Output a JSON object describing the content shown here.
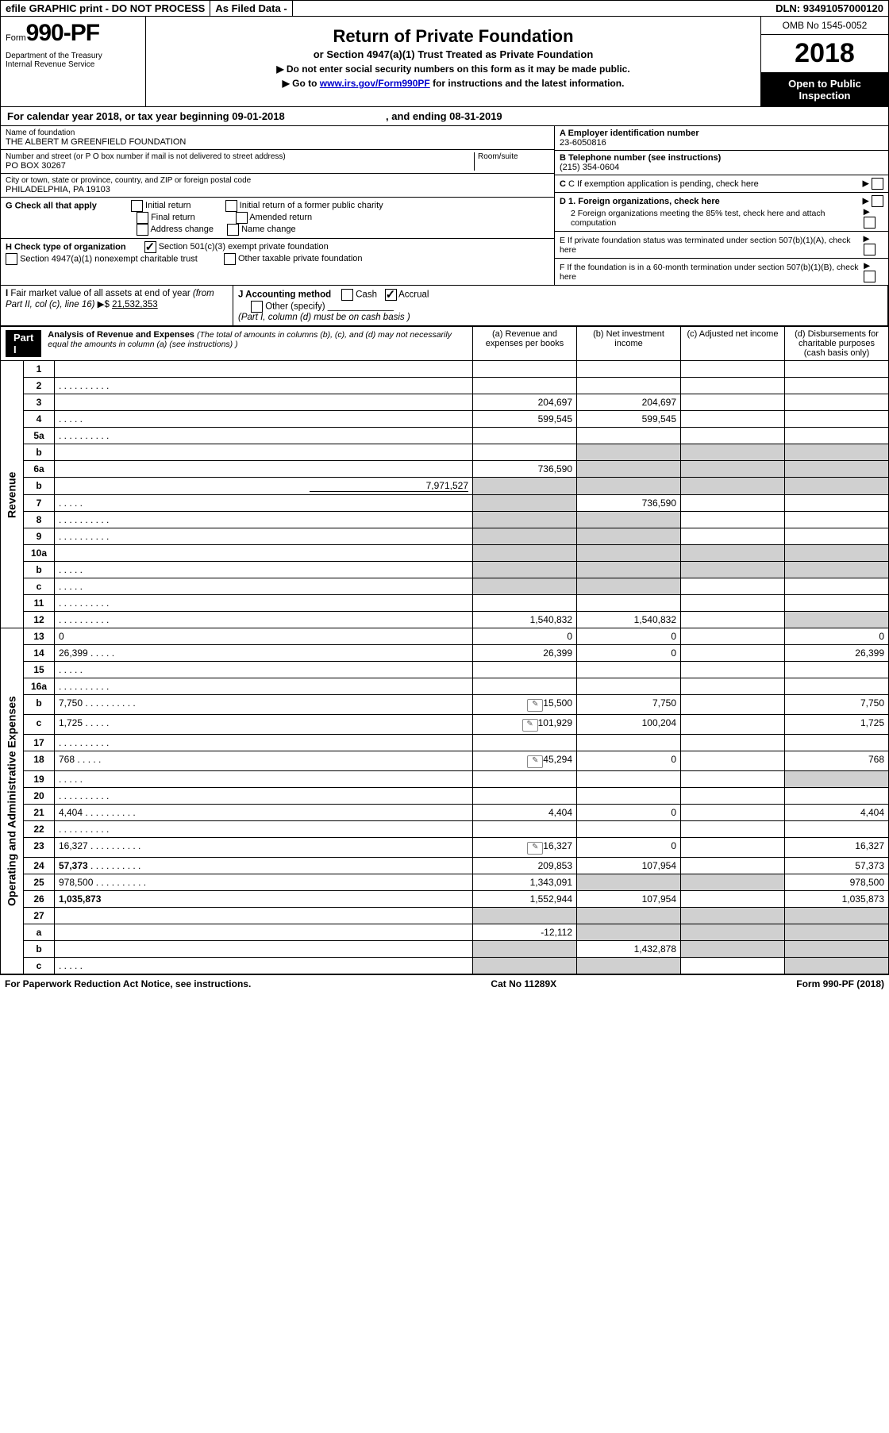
{
  "topbar": {
    "efile": "efile GRAPHIC print - DO NOT PROCESS",
    "asfiled": "As Filed Data -",
    "dln_label": "DLN:",
    "dln": "93491057000120"
  },
  "header": {
    "form_word": "Form",
    "form_no": "990-PF",
    "dept": "Department of the Treasury\nInternal Revenue Service",
    "title": "Return of Private Foundation",
    "subtitle": "or Section 4947(a)(1) Trust Treated as Private Foundation",
    "instr1": "▶ Do not enter social security numbers on this form as it may be made public.",
    "instr2_pre": "▶ Go to ",
    "instr2_link": "www.irs.gov/Form990PF",
    "instr2_post": " for instructions and the latest information.",
    "omb": "OMB No 1545-0052",
    "year": "2018",
    "open": "Open to Public Inspection"
  },
  "calyear": {
    "text_pre": "For calendar year 2018, or tax year beginning ",
    "begin": "09-01-2018",
    "mid": ", and ending ",
    "end": "08-31-2019"
  },
  "info": {
    "name_label": "Name of foundation",
    "name": "THE ALBERT M GREENFIELD FOUNDATION",
    "addr_label": "Number and street (or P O  box number if mail is not delivered to street address)",
    "room_label": "Room/suite",
    "addr": "PO BOX 30267",
    "city_label": "City or town, state or province, country, and ZIP or foreign postal code",
    "city": "PHILADELPHIA, PA  19103",
    "a_label": "A Employer identification number",
    "a_val": "23-6050816",
    "b_label": "B Telephone number (see instructions)",
    "b_val": "(215) 354-0604",
    "c_label": "C If exemption application is pending, check here",
    "d1": "D 1. Foreign organizations, check here",
    "d2": "2  Foreign organizations meeting the 85% test, check here and attach computation",
    "e": "E  If private foundation status was terminated under section 507(b)(1)(A), check here",
    "f": "F  If the foundation is in a 60-month termination under section 507(b)(1)(B), check here"
  },
  "g": {
    "label": "G Check all that apply",
    "opts": [
      "Initial return",
      "Initial return of a former public charity",
      "Final return",
      "Amended return",
      "Address change",
      "Name change"
    ]
  },
  "h": {
    "label": "H Check type of organization",
    "opt1": "Section 501(c)(3) exempt private foundation",
    "opt2": "Section 4947(a)(1) nonexempt charitable trust",
    "opt3": "Other taxable private foundation"
  },
  "i": {
    "label": "I Fair market value of all assets at end of year (from Part II, col  (c), line 16) ▶$ ",
    "val": "21,532,353"
  },
  "j": {
    "label": "J Accounting method",
    "cash": "Cash",
    "accrual": "Accrual",
    "other": "Other (specify)",
    "note": "(Part I, column (d) must be on cash basis )"
  },
  "part1": {
    "label": "Part I",
    "title": "Analysis of Revenue and Expenses",
    "note": "(The total of amounts in columns (b), (c), and (d) may not necessarily equal the amounts in column (a) (see instructions) )",
    "col_a": "(a)   Revenue and expenses per books",
    "col_b": "(b)  Net investment income",
    "col_c": "(c)  Adjusted net income",
    "col_d": "(d)  Disbursements for charitable purposes (cash basis only)"
  },
  "side": {
    "revenue": "Revenue",
    "expenses": "Operating and Administrative Expenses"
  },
  "rows": [
    {
      "n": "1",
      "d": "",
      "a": "",
      "b": "",
      "c": ""
    },
    {
      "n": "2",
      "d": "",
      "a": "",
      "b": "",
      "c": "",
      "dots": true
    },
    {
      "n": "3",
      "d": "",
      "a": "204,697",
      "b": "204,697",
      "c": ""
    },
    {
      "n": "4",
      "d": "",
      "a": "599,545",
      "b": "599,545",
      "c": "",
      "dots": "s"
    },
    {
      "n": "5a",
      "d": "",
      "a": "",
      "b": "",
      "c": "",
      "dots": true
    },
    {
      "n": "b",
      "d": "",
      "a": "",
      "b": "",
      "c": "",
      "shade_bcd": true
    },
    {
      "n": "6a",
      "d": "",
      "a": "736,590",
      "b": "",
      "c": "",
      "shade_bcd": true
    },
    {
      "n": "b",
      "d": "",
      "sub": "7,971,527",
      "a": "",
      "b": "",
      "c": "",
      "shade_all": true
    },
    {
      "n": "7",
      "d": "",
      "a": "",
      "b": "736,590",
      "c": "",
      "shade_a": true,
      "dots": "s"
    },
    {
      "n": "8",
      "d": "",
      "a": "",
      "b": "",
      "c": "",
      "shade_ab": true,
      "dots": true
    },
    {
      "n": "9",
      "d": "",
      "a": "",
      "b": "",
      "c": "",
      "shade_ab": true,
      "dots": true
    },
    {
      "n": "10a",
      "d": "",
      "a": "",
      "b": "",
      "c": "",
      "shade_all": true
    },
    {
      "n": "b",
      "d": "",
      "a": "",
      "b": "",
      "c": "",
      "shade_all": true,
      "dots": "s"
    },
    {
      "n": "c",
      "d": "",
      "a": "",
      "b": "",
      "c": "",
      "shade_ab": true,
      "dots": "s"
    },
    {
      "n": "11",
      "d": "",
      "a": "",
      "b": "",
      "c": "",
      "dots": true
    },
    {
      "n": "12",
      "d": "",
      "a": "1,540,832",
      "b": "1,540,832",
      "c": "",
      "bold": true,
      "dots": true,
      "shade_d": true
    }
  ],
  "exp_rows": [
    {
      "n": "13",
      "d": "0",
      "a": "0",
      "b": "0",
      "c": ""
    },
    {
      "n": "14",
      "d": "26,399",
      "a": "26,399",
      "b": "0",
      "c": "",
      "dots": "s"
    },
    {
      "n": "15",
      "d": "",
      "a": "",
      "b": "",
      "c": "",
      "dots": "s"
    },
    {
      "n": "16a",
      "d": "",
      "a": "",
      "b": "",
      "c": "",
      "dots": true
    },
    {
      "n": "b",
      "d": "7,750",
      "a": "15,500",
      "b": "7,750",
      "c": "",
      "attach": true,
      "dots": true
    },
    {
      "n": "c",
      "d": "1,725",
      "a": "101,929",
      "b": "100,204",
      "c": "",
      "attach": true,
      "dots": "s"
    },
    {
      "n": "17",
      "d": "",
      "a": "",
      "b": "",
      "c": "",
      "dots": true
    },
    {
      "n": "18",
      "d": "768",
      "a": "45,294",
      "b": "0",
      "c": "",
      "attach": true,
      "dots": "s"
    },
    {
      "n": "19",
      "d": "",
      "a": "",
      "b": "",
      "c": "",
      "dots": "s",
      "shade_d": true
    },
    {
      "n": "20",
      "d": "",
      "a": "",
      "b": "",
      "c": "",
      "dots": true
    },
    {
      "n": "21",
      "d": "4,404",
      "a": "4,404",
      "b": "0",
      "c": "",
      "dots": true
    },
    {
      "n": "22",
      "d": "",
      "a": "",
      "b": "",
      "c": "",
      "dots": true
    },
    {
      "n": "23",
      "d": "16,327",
      "a": "16,327",
      "b": "0",
      "c": "",
      "attach": true,
      "dots": true
    },
    {
      "n": "24",
      "d": "57,373",
      "a": "209,853",
      "b": "107,954",
      "c": "",
      "bold": true,
      "dots": true
    },
    {
      "n": "25",
      "d": "978,500",
      "a": "1,343,091",
      "b": "",
      "c": "",
      "dots": true,
      "shade_bc": true
    },
    {
      "n": "26",
      "d": "1,035,873",
      "a": "1,552,944",
      "b": "107,954",
      "c": "",
      "bold": true
    },
    {
      "n": "27",
      "d": "",
      "a": "",
      "b": "",
      "c": "",
      "shade_all": true
    },
    {
      "n": "a",
      "d": "",
      "a": "-12,112",
      "b": "",
      "c": "",
      "bold": true,
      "shade_bcd": true
    },
    {
      "n": "b",
      "d": "",
      "a": "",
      "b": "1,432,878",
      "c": "",
      "bold": true,
      "shade_a": true,
      "shade_cd": true
    },
    {
      "n": "c",
      "d": "",
      "a": "",
      "b": "",
      "c": "",
      "bold": true,
      "shade_ab": true,
      "shade_d": true,
      "dots": "s"
    }
  ],
  "footer": {
    "left": "For Paperwork Reduction Act Notice, see instructions.",
    "center": "Cat No  11289X",
    "right": "Form 990-PF (2018)"
  }
}
